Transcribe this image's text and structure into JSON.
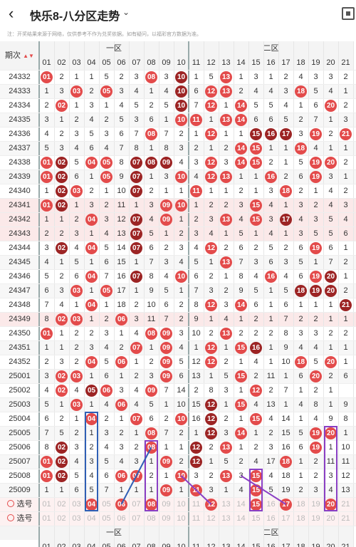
{
  "header": {
    "back_icon": "chevron-left-icon",
    "title": "快乐8-八分区走势",
    "menu_icon": "chevron-down-icon",
    "share_icon": "qr-icon"
  },
  "notice": "注：开奖结果来源于网络，仅供参考不作为兑奖依据。如有疑问，以福彩官方数据为准。",
  "table": {
    "period_header": "期次",
    "zones": [
      "一区",
      "二区"
    ],
    "columns": [
      "01",
      "02",
      "03",
      "04",
      "05",
      "06",
      "07",
      "08",
      "09",
      "10",
      "11",
      "12",
      "13",
      "14",
      "15",
      "16",
      "17",
      "18",
      "19",
      "20",
      "21"
    ],
    "rows": [
      {
        "p": "24332",
        "c": [
          [
            "01",
            "b"
          ],
          "2",
          "1",
          "1",
          "5",
          "2",
          "3",
          [
            "08",
            "b"
          ],
          "3",
          [
            "10",
            "d"
          ],
          "1",
          "5",
          [
            "13",
            "b"
          ],
          "1",
          "3",
          "1",
          "2",
          "4",
          "3",
          "3",
          "2"
        ]
      },
      {
        "p": "24333",
        "c": [
          "1",
          "3",
          [
            "03",
            "b"
          ],
          "2",
          [
            "05",
            "b"
          ],
          "3",
          "4",
          "1",
          "4",
          [
            "10",
            "d"
          ],
          "6",
          [
            "12",
            "b"
          ],
          [
            "13",
            "b"
          ],
          "2",
          "4",
          "4",
          "3",
          [
            "18",
            "b"
          ],
          "5",
          "4",
          "1"
        ]
      },
      {
        "p": "24334",
        "c": [
          "2",
          [
            "02",
            "b"
          ],
          "1",
          "3",
          "1",
          "4",
          "5",
          "2",
          "5",
          [
            "10",
            "d"
          ],
          "7",
          [
            "12",
            "b"
          ],
          "1",
          [
            "14",
            "b"
          ],
          "5",
          "5",
          "4",
          "1",
          "6",
          [
            "20",
            "b"
          ],
          "2"
        ]
      },
      {
        "p": "24335",
        "c": [
          "3",
          "1",
          "2",
          "4",
          "2",
          "5",
          "3",
          "6",
          "1",
          [
            "10",
            "b"
          ],
          [
            "11",
            "b"
          ],
          "1",
          [
            "13",
            "b"
          ],
          [
            "14",
            "b"
          ],
          "6",
          "6",
          "5",
          "2",
          "7",
          "1",
          "3"
        ]
      },
      {
        "p": "24336",
        "c": [
          "4",
          "2",
          "3",
          "5",
          "3",
          "6",
          "7",
          [
            "08",
            "b"
          ],
          "7",
          "2",
          "1",
          [
            "12",
            "b"
          ],
          "1",
          "1",
          [
            "15",
            "d"
          ],
          [
            "16",
            "d"
          ],
          [
            "17",
            "d"
          ],
          "3",
          [
            "19",
            "b"
          ],
          "2",
          [
            "21",
            "b"
          ]
        ]
      },
      {
        "p": "24337",
        "c": [
          "5",
          "3",
          "4",
          "6",
          "4",
          "7",
          "8",
          "1",
          "8",
          "3",
          "2",
          "1",
          "2",
          [
            "14",
            "b"
          ],
          [
            "15",
            "b"
          ],
          "1",
          "1",
          [
            "18",
            "b"
          ],
          "4",
          "1",
          "1"
        ]
      },
      {
        "p": "24338",
        "c": [
          [
            "01",
            "b"
          ],
          [
            "02",
            "d"
          ],
          "5",
          [
            "04",
            "b"
          ],
          [
            "05",
            "b"
          ],
          "8",
          [
            "07",
            "d"
          ],
          [
            "08",
            "d"
          ],
          [
            "09",
            "d"
          ],
          "4",
          "3",
          [
            "12",
            "b"
          ],
          "3",
          [
            "14",
            "b"
          ],
          [
            "15",
            "b"
          ],
          "2",
          "1",
          "5",
          [
            "19",
            "b"
          ],
          [
            "20",
            "b"
          ],
          "2"
        ]
      },
      {
        "p": "24339",
        "c": [
          [
            "01",
            "b"
          ],
          [
            "02",
            "d"
          ],
          "6",
          "1",
          [
            "05",
            "b"
          ],
          "9",
          [
            "07",
            "d"
          ],
          "1",
          "3",
          [
            "10",
            "b"
          ],
          "4",
          [
            "12",
            "b"
          ],
          [
            "13",
            "b"
          ],
          "1",
          "1",
          [
            "16",
            "b"
          ],
          "2",
          "6",
          [
            "19",
            "b"
          ],
          "3",
          "1"
        ]
      },
      {
        "p": "24340",
        "c": [
          "1",
          [
            "02",
            "d"
          ],
          [
            "03",
            "b"
          ],
          "2",
          "1",
          "10",
          [
            "07",
            "d"
          ],
          "2",
          "1",
          "1",
          [
            "11",
            "b"
          ],
          "1",
          "1",
          "2",
          "1",
          "3",
          [
            "18",
            "b"
          ],
          "2",
          "1",
          "4",
          "2"
        ]
      },
      {
        "p": "24341",
        "c": [
          [
            "01",
            "b"
          ],
          [
            "02",
            "d"
          ],
          "1",
          "3",
          "2",
          "11",
          "1",
          "3",
          [
            "09",
            "b"
          ],
          [
            "10",
            "b"
          ],
          "1",
          "2",
          "2",
          "3",
          [
            "15",
            "b"
          ],
          "4",
          "1",
          "3",
          "2",
          "4",
          "3"
        ]
      },
      {
        "p": "24342",
        "c": [
          "1",
          "1",
          "2",
          [
            "04",
            "b"
          ],
          "3",
          "12",
          [
            "07",
            "d"
          ],
          "4",
          [
            "09",
            "b"
          ],
          "1",
          "2",
          "3",
          [
            "13",
            "b"
          ],
          "4",
          [
            "15",
            "b"
          ],
          "3",
          [
            "17",
            "d"
          ],
          "4",
          "3",
          "5",
          "4"
        ]
      },
      {
        "p": "24343",
        "c": [
          "2",
          "2",
          "3",
          "1",
          "4",
          "13",
          [
            "07",
            "d"
          ],
          "5",
          "1",
          "2",
          "3",
          "4",
          "1",
          "5",
          "1",
          "4",
          "1",
          "3",
          "5",
          "5",
          "6"
        ]
      },
      {
        "p": "24344",
        "c": [
          "3",
          [
            "02",
            "d"
          ],
          "4",
          [
            "04",
            "b"
          ],
          "5",
          "14",
          [
            "07",
            "d"
          ],
          "6",
          "2",
          "3",
          "4",
          [
            "12",
            "b"
          ],
          "2",
          "6",
          "2",
          "5",
          "2",
          "6",
          [
            "19",
            "b"
          ],
          "6",
          "1"
        ]
      },
      {
        "p": "24345",
        "c": [
          "4",
          "1",
          "5",
          "1",
          "6",
          "15",
          "1",
          "7",
          "3",
          "4",
          "5",
          "1",
          [
            "13",
            "b"
          ],
          "7",
          "3",
          "6",
          "3",
          "5",
          "1",
          "7",
          "2"
        ]
      },
      {
        "p": "24346",
        "c": [
          "5",
          "2",
          "6",
          [
            "04",
            "b"
          ],
          "7",
          "16",
          [
            "07",
            "d"
          ],
          "8",
          "4",
          [
            "10",
            "b"
          ],
          "6",
          "2",
          "1",
          "8",
          "4",
          [
            "16",
            "b"
          ],
          "4",
          "6",
          [
            "19",
            "b"
          ],
          [
            "20",
            "d"
          ],
          "1"
        ]
      },
      {
        "p": "24347",
        "c": [
          "6",
          "3",
          [
            "03",
            "b"
          ],
          "1",
          [
            "05",
            "b"
          ],
          "17",
          "1",
          "9",
          "5",
          "1",
          "7",
          "3",
          "2",
          "9",
          "5",
          "1",
          "5",
          [
            "18",
            "d"
          ],
          [
            "19",
            "d"
          ],
          [
            "20",
            "d"
          ],
          "2"
        ]
      },
      {
        "p": "24348",
        "c": [
          "7",
          "4",
          "1",
          [
            "04",
            "b"
          ],
          "1",
          "18",
          "2",
          "10",
          "6",
          "2",
          "8",
          [
            "12",
            "b"
          ],
          "3",
          [
            "14",
            "b"
          ],
          "6",
          "1",
          "6",
          "1",
          "1",
          "1",
          [
            "21",
            "d"
          ]
        ]
      },
      {
        "p": "24349",
        "c": [
          "8",
          [
            "02",
            "b"
          ],
          [
            "03",
            "b"
          ],
          "1",
          "2",
          [
            "06",
            "b"
          ],
          "3",
          "11",
          "7",
          "2",
          "9",
          "1",
          "4",
          "1",
          "2",
          "1",
          "7",
          "2",
          "2",
          "1",
          "1"
        ]
      },
      {
        "p": "24350",
        "c": [
          [
            "01",
            "b"
          ],
          "1",
          "2",
          "2",
          "3",
          "1",
          "4",
          [
            "08",
            "b"
          ],
          [
            "09",
            "b"
          ],
          "3",
          "10",
          "2",
          [
            "13",
            "b"
          ],
          "2",
          "2",
          "2",
          "8",
          "3",
          "3",
          "2",
          "2"
        ]
      },
      {
        "p": "24351",
        "c": [
          "1",
          "1",
          "2",
          "3",
          "4",
          "2",
          [
            "07",
            "b"
          ],
          "1",
          [
            "09",
            "b"
          ],
          "4",
          "1",
          [
            "12",
            "b"
          ],
          "1",
          [
            "15",
            "b"
          ],
          [
            "16",
            "d"
          ],
          "1",
          "9",
          "4",
          "4",
          "1",
          "1"
        ]
      },
      {
        "p": "24352",
        "c": [
          "2",
          "3",
          "2",
          [
            "04",
            "b"
          ],
          "5",
          [
            "06",
            "b"
          ],
          "1",
          "2",
          [
            "09",
            "b"
          ],
          "5",
          "12",
          [
            "12",
            "b"
          ],
          "2",
          "1",
          "4",
          "1",
          "10",
          [
            "18",
            "b"
          ],
          "5",
          [
            "20",
            "b"
          ],
          "1"
        ]
      },
      {
        "p": "25001",
        "c": [
          "3",
          [
            "02",
            "b"
          ],
          [
            "03",
            "b"
          ],
          "1",
          "6",
          "1",
          "2",
          "3",
          [
            "09",
            "b"
          ],
          "6",
          "13",
          "1",
          "5",
          [
            "15",
            "b"
          ],
          "2",
          "11",
          "1",
          "6",
          [
            "20",
            "b"
          ],
          "2",
          "6"
        ]
      },
      {
        "p": "25002",
        "c": [
          "4",
          [
            "02",
            "b"
          ],
          "4",
          [
            "05",
            "d"
          ],
          [
            "06",
            "b"
          ],
          "3",
          "4",
          [
            "09",
            "b"
          ],
          "7",
          "14",
          "2",
          "8",
          "3",
          "1",
          [
            "12",
            "b"
          ],
          "2",
          "7",
          "1",
          "2",
          "1"
        ]
      },
      {
        "p": "25003",
        "c": [
          "5",
          "1",
          [
            "03",
            "b"
          ],
          "1",
          "4",
          [
            "06",
            "b"
          ],
          "4",
          "5",
          "1",
          "10",
          "15",
          [
            "12",
            "d"
          ],
          "1",
          [
            "15",
            "b"
          ],
          "4",
          "13",
          "1",
          "4",
          "8",
          "1",
          "9"
        ]
      },
      {
        "p": "25004",
        "c": [
          "6",
          "2",
          "1",
          [
            "04",
            "b"
          ],
          "2",
          "1",
          [
            "07",
            "b"
          ],
          "6",
          "2",
          [
            "10",
            "b"
          ],
          "16",
          [
            "12",
            "d"
          ],
          "2",
          "1",
          [
            "15",
            "b"
          ],
          "4",
          "14",
          "1",
          "4",
          "9",
          "8"
        ]
      },
      {
        "p": "25005",
        "c": [
          "7",
          "5",
          "2",
          "1",
          "3",
          "2",
          "1",
          [
            "08",
            "b"
          ],
          "7",
          "2",
          "1",
          [
            "12",
            "d"
          ],
          "3",
          [
            "14",
            "b"
          ],
          "1",
          "2",
          "15",
          "5",
          [
            "19",
            "b"
          ],
          [
            "20",
            "b"
          ],
          "1"
        ]
      },
      {
        "p": "25006",
        "c": [
          "8",
          [
            "02",
            "d"
          ],
          "3",
          "2",
          "4",
          "3",
          "2",
          [
            "08",
            "b"
          ],
          "1",
          "1",
          [
            "12",
            "d"
          ],
          "2",
          [
            "13",
            "b"
          ],
          "1",
          "2",
          "3",
          "16",
          "6",
          [
            "19",
            "b"
          ],
          "1",
          "10"
        ]
      },
      {
        "p": "25007",
        "c": [
          [
            "01",
            "b"
          ],
          [
            "02",
            "d"
          ],
          "4",
          "3",
          "5",
          "4",
          "3",
          "1",
          [
            "09",
            "b"
          ],
          "2",
          [
            "12",
            "d"
          ],
          "1",
          "5",
          "2",
          "4",
          "17",
          [
            "18",
            "b"
          ],
          "1",
          "2",
          "11",
          "11"
        ]
      },
      {
        "p": "25008",
        "c": [
          [
            "01",
            "b"
          ],
          [
            "02",
            "d"
          ],
          "5",
          "4",
          "6",
          [
            "06",
            "b"
          ],
          [
            "07",
            "b"
          ],
          "2",
          "1",
          [
            "10",
            "b"
          ],
          "3",
          "2",
          [
            "13",
            "b"
          ],
          "3",
          [
            "15",
            "b"
          ],
          "4",
          "18",
          "1",
          "2",
          "3",
          "12"
        ]
      },
      {
        "p": "25009",
        "c": [
          "1",
          "1",
          "6",
          "5",
          "7",
          "1",
          "1",
          "1",
          [
            "09",
            "b"
          ],
          "1",
          [
            "11",
            "b"
          ],
          "3",
          "1",
          "4",
          [
            "15",
            "b"
          ],
          "5",
          "19",
          "2",
          "3",
          "4",
          "13"
        ]
      }
    ],
    "pick_label": "选号",
    "pick_rows": [
      [
        "01",
        "02",
        "03",
        [
          "04",
          "b"
        ],
        "05",
        [
          "06",
          "b"
        ],
        "07",
        [
          "08",
          "b"
        ],
        "09",
        "10",
        "11",
        [
          "12",
          "b"
        ],
        "13",
        "14",
        [
          "15",
          "b"
        ],
        "16",
        [
          "17",
          "b"
        ],
        "18",
        "19",
        [
          "20",
          "b"
        ],
        "21"
      ],
      [
        "01",
        "02",
        "03",
        "04",
        "05",
        "06",
        "07",
        "08",
        "09",
        "10",
        "11",
        "12",
        "13",
        "14",
        "15",
        "16",
        "17",
        "18",
        "19",
        "20",
        "21"
      ]
    ]
  },
  "colors": {
    "red": "#e34b4b",
    "dark": "#9c2424",
    "blue_frame": "#2f5fb5",
    "purple_frame": "#8a3fc4"
  }
}
